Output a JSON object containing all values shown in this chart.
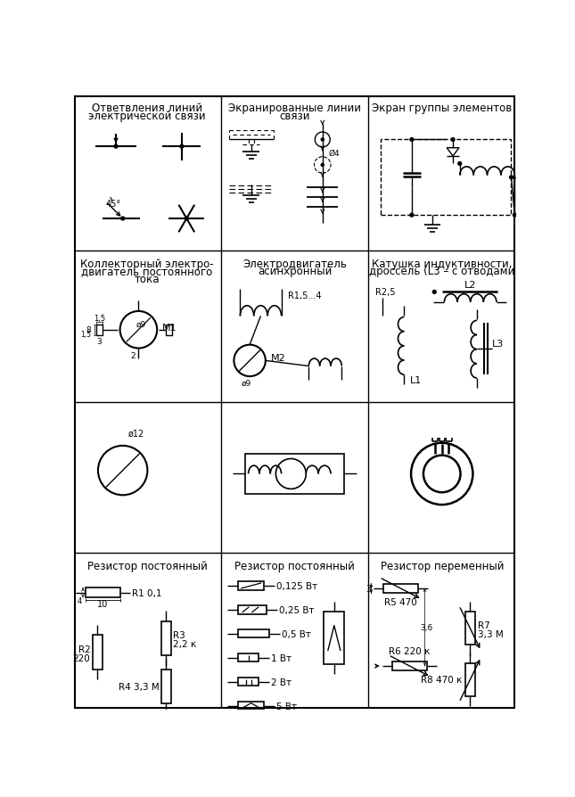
{
  "row_tops": [
    895,
    668,
    448,
    228
  ],
  "row_bots": [
    668,
    448,
    228,
    0
  ],
  "col_lefts": [
    0,
    215,
    430
  ],
  "col_rights": [
    215,
    430,
    645
  ],
  "titles": [
    [
      0,
      0,
      "Ответвления линий\nэлектрической связи"
    ],
    [
      0,
      1,
      "Экранированные линии\nсвязи"
    ],
    [
      0,
      2,
      "Экран группы элементов"
    ],
    [
      1,
      0,
      "Коллекторный электро-\nдвигатель постоянного\nтока"
    ],
    [
      1,
      1,
      "Электродвигатель\nасинхронный"
    ],
    [
      1,
      2,
      "Катушка индуктивности,\nдроссель (L3 – с отводами"
    ],
    [
      3,
      0,
      "Резистор постоянный"
    ],
    [
      3,
      1,
      "Резистор постоянный"
    ],
    [
      3,
      2,
      "Резистор переменный"
    ]
  ]
}
